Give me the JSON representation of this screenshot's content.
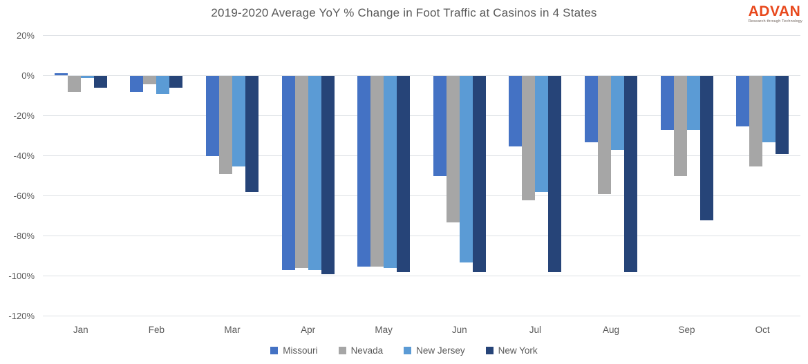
{
  "title": "2019-2020 Average YoY % Change in Foot Traffic at Casinos in 4 States",
  "logo": {
    "text": "ADVAN",
    "tagline": "Research through Technology",
    "color": "#e8481c"
  },
  "chart_data": {
    "type": "bar",
    "title": "2019-2020 Average YoY % Change in Foot Traffic at Casinos in 4 States",
    "categories": [
      "Jan",
      "Feb",
      "Mar",
      "Apr",
      "May",
      "Jun",
      "Jul",
      "Aug",
      "Sep",
      "Oct"
    ],
    "series": [
      {
        "name": "Missouri",
        "color": "#4472c4",
        "values": [
          1,
          -8,
          -40,
          -97,
          -95,
          -50,
          -35,
          -33,
          -27,
          -25
        ]
      },
      {
        "name": "Nevada",
        "color": "#a6a6a6",
        "values": [
          -8,
          -4,
          -49,
          -96,
          -95,
          -73,
          -62,
          -59,
          -50,
          -45
        ]
      },
      {
        "name": "New Jersey",
        "color": "#5b9bd5",
        "values": [
          -1,
          -9,
          -45,
          -97,
          -96,
          -93,
          -58,
          -37,
          -27,
          -33
        ]
      },
      {
        "name": "New York",
        "color": "#264478",
        "values": [
          -6,
          -6,
          -58,
          -99,
          -98,
          -98,
          -98,
          -98,
          -72,
          -39
        ]
      }
    ],
    "xlabel": "",
    "ylabel": "",
    "ylim": [
      -120,
      20
    ],
    "y_ticks": [
      "20%",
      "0%",
      "-20%",
      "-40%",
      "-60%",
      "-80%",
      "-100%",
      "-120%"
    ],
    "grid": true,
    "legend_position": "bottom"
  },
  "note": ""
}
